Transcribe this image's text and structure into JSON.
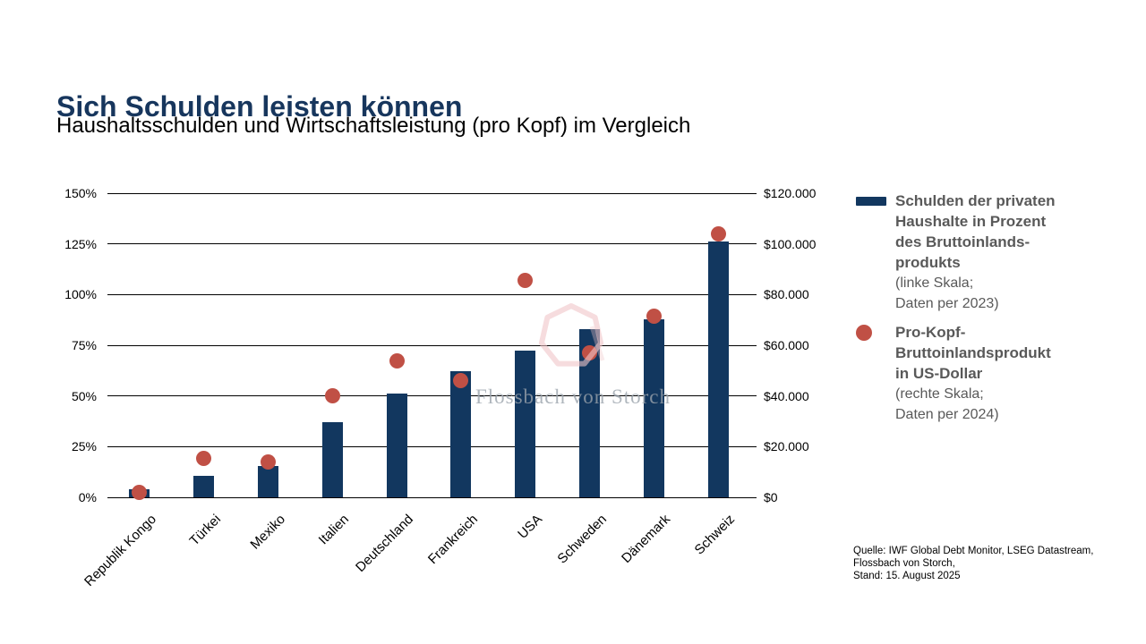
{
  "title": "Sich Schulden leisten können",
  "subtitle": "Haushaltsschulden und Wirtschaftsleistung (pro Kopf) im Vergleich",
  "watermark": {
    "text": "Flossbach von Storch"
  },
  "colors": {
    "title": "#17365d",
    "bar": "#12375f",
    "dot": "#c05045",
    "legend_text": "#595959",
    "watermark_text": "#9ba3ac",
    "watermark_shape": "#f0c5c8"
  },
  "chart_data": {
    "type": "bar",
    "subtype": "dual-axis bar + scatter",
    "title": "Sich Schulden leisten können",
    "subtitle": "Haushaltsschulden und Wirtschaftsleistung (pro Kopf) im Vergleich",
    "categories": [
      "Republik Kongo",
      "Türkei",
      "Mexiko",
      "Italien",
      "Deutschland",
      "Frankreich",
      "USA",
      "Schweden",
      "Dänemark",
      "Schweiz"
    ],
    "series": [
      {
        "name": "Schulden der privaten Haushalte in Prozent des Bruttoinlandsprodukts",
        "type": "bar",
        "axis": "left",
        "unit": "% des BIP",
        "values": [
          4,
          10.5,
          15.5,
          37,
          51,
          62,
          72.5,
          83,
          88,
          126
        ]
      },
      {
        "name": "Pro-Kopf-Bruttoinlandsprodukt in US-Dollar",
        "type": "scatter",
        "axis": "right",
        "unit": "USD",
        "values": [
          2000,
          15500,
          14000,
          40000,
          54000,
          46000,
          85500,
          57000,
          71500,
          104000
        ]
      }
    ],
    "left_axis": {
      "min": 0,
      "max": 150,
      "tick_step": 25,
      "tick_labels": [
        "0%",
        "25%",
        "50%",
        "75%",
        "100%",
        "125%",
        "150%"
      ]
    },
    "right_axis": {
      "min": 0,
      "max": 120000,
      "tick_step": 20000,
      "tick_labels": [
        "$0",
        "$20.000",
        "$40.000",
        "$60.000",
        "$80.000",
        "$100.000",
        "$120.000"
      ]
    },
    "grid": true,
    "legend_position": "right"
  },
  "legend": {
    "items": [
      {
        "marker": "bar-swatch",
        "title_lines": [
          "Schulden der privaten",
          "Haushalte in Prozent",
          "des Bruttoinlands-",
          "produkts"
        ],
        "note_lines": [
          "(linke Skala;",
          "Daten per 2023)"
        ]
      },
      {
        "marker": "dot-swatch",
        "title_lines": [
          "Pro-Kopf-",
          "Bruttoinlandsprodukt",
          "in US-Dollar"
        ],
        "note_lines": [
          "(rechte Skala;",
          "Daten per 2024)"
        ]
      }
    ]
  },
  "source": {
    "lines": [
      "Quelle: IWF Global Debt Monitor, LSEG Datastream,",
      "Flossbach von Storch,",
      "Stand: 15. August 2025"
    ]
  }
}
